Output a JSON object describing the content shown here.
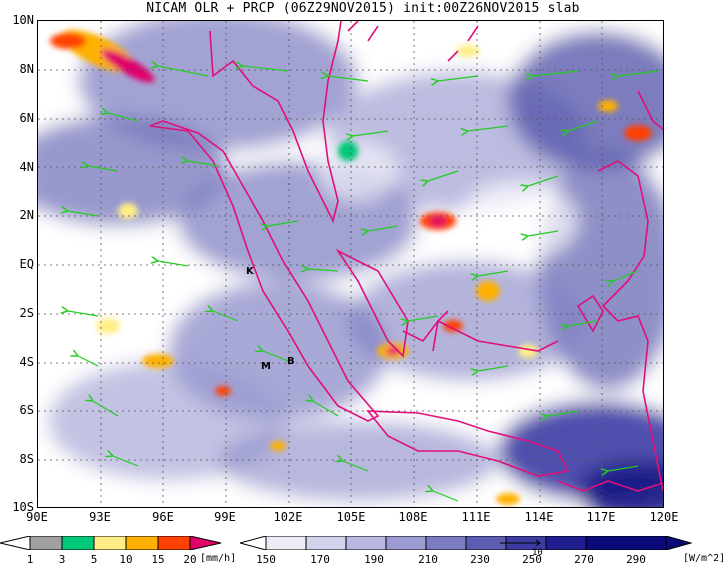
{
  "title": "NICAM OLR + PRCP (06Z29NOV2015) init:00Z26NOV2015 slab",
  "lat_labels": [
    "10N",
    "8N",
    "6N",
    "4N",
    "2N",
    "EQ",
    "2S",
    "4S",
    "6S",
    "8S",
    "10S"
  ],
  "lon_labels": [
    "90E",
    "93E",
    "96E",
    "99E",
    "102E",
    "105E",
    "108E",
    "111E",
    "114E",
    "117E",
    "120E"
  ],
  "stations": [
    {
      "label": "K",
      "lon": 100.3,
      "lat": -0.2
    },
    {
      "label": "M",
      "lon": 101.7,
      "lat": -4.1
    },
    {
      "label": "B",
      "lon": 102.8,
      "lat": -3.8
    }
  ],
  "precip_colorbar": {
    "ticks": [
      "1",
      "3",
      "5",
      "10",
      "15",
      "20"
    ],
    "unit": "[mm/h]",
    "colors": [
      "#ffffff",
      "#a0a0a0",
      "#00c878",
      "#ffee88",
      "#ffb000",
      "#ff4000",
      "#e0006a"
    ]
  },
  "olr_colorbar": {
    "ticks": [
      "150",
      "170",
      "190",
      "210",
      "230",
      "250",
      "270",
      "290"
    ],
    "unit": "[W/m^2]",
    "colors": [
      "#ffffff",
      "#ebebf6",
      "#d2d2ec",
      "#b8b8e0",
      "#9c9cd3",
      "#7c7cc4",
      "#5c5cb3",
      "#3c3ca2",
      "#1e1e8e",
      "#0a0a78"
    ]
  },
  "wind_reference": "10"
}
